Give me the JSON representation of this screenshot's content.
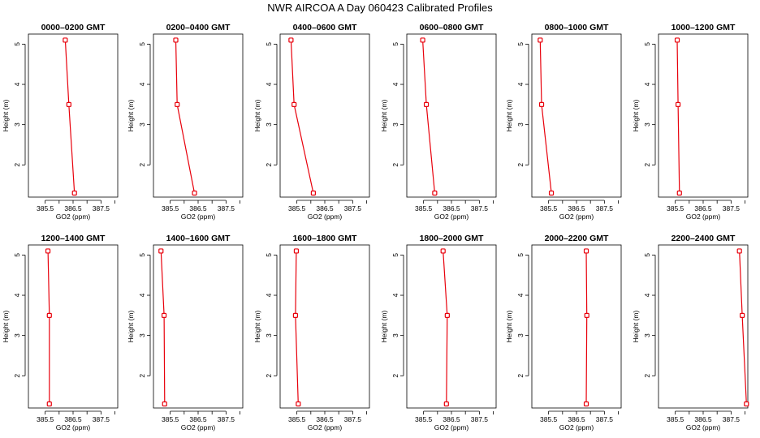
{
  "title": "NWR AIRCOA A  Day 060423  Calibrated Profiles",
  "colors": {
    "series": "#e8000b",
    "axis": "#000000"
  },
  "chart_data": [
    {
      "type": "line",
      "title": "0000–0200 GMT",
      "xlabel": "GO2 (ppm)",
      "ylabel": "Height (m)",
      "xlim": [
        384.9,
        388.1
      ],
      "ylim": [
        1.2,
        5.25
      ],
      "xticks": [
        385.5,
        386.5,
        387.5
      ],
      "xtick_labels": [
        "385.5",
        "386.5",
        "387.5"
      ],
      "yticks": [
        2,
        3,
        4,
        5
      ],
      "ytick_labels": [
        "2",
        "3",
        "4",
        "5"
      ],
      "points": [
        {
          "x": 386.22,
          "y": 5.1
        },
        {
          "x": 386.35,
          "y": 3.5
        },
        {
          "x": 386.55,
          "y": 1.3
        }
      ]
    },
    {
      "type": "line",
      "title": "0200–0400 GMT",
      "xlabel": "GO2 (ppm)",
      "ylabel": "Height (m)",
      "xlim": [
        384.9,
        388.1
      ],
      "ylim": [
        1.2,
        5.25
      ],
      "xticks": [
        385.5,
        386.5,
        387.5
      ],
      "xtick_labels": [
        "385.5",
        "386.5",
        "387.5"
      ],
      "yticks": [
        2,
        3,
        4,
        5
      ],
      "ytick_labels": [
        "2",
        "3",
        "4",
        "5"
      ],
      "points": [
        {
          "x": 385.7,
          "y": 5.1
        },
        {
          "x": 385.75,
          "y": 3.5
        },
        {
          "x": 386.37,
          "y": 1.3
        }
      ]
    },
    {
      "type": "line",
      "title": "0400–0600 GMT",
      "xlabel": "GO2 (ppm)",
      "ylabel": "Height (m)",
      "xlim": [
        384.9,
        388.1
      ],
      "ylim": [
        1.2,
        5.25
      ],
      "xticks": [
        385.5,
        386.5,
        387.5
      ],
      "xtick_labels": [
        "385.5",
        "386.5",
        "387.5"
      ],
      "yticks": [
        2,
        3,
        4,
        5
      ],
      "ytick_labels": [
        "2",
        "3",
        "4",
        "5"
      ],
      "points": [
        {
          "x": 385.29,
          "y": 5.1
        },
        {
          "x": 385.4,
          "y": 3.5
        },
        {
          "x": 386.09,
          "y": 1.3
        }
      ]
    },
    {
      "type": "line",
      "title": "0600–0800 GMT",
      "xlabel": "GO2 (ppm)",
      "ylabel": "Height (m)",
      "xlim": [
        384.9,
        388.1
      ],
      "ylim": [
        1.2,
        5.25
      ],
      "xticks": [
        385.5,
        386.5,
        387.5
      ],
      "xtick_labels": [
        "385.5",
        "386.5",
        "387.5"
      ],
      "yticks": [
        2,
        3,
        4,
        5
      ],
      "ytick_labels": [
        "2",
        "3",
        "4",
        "5"
      ],
      "points": [
        {
          "x": 385.47,
          "y": 5.1
        },
        {
          "x": 385.6,
          "y": 3.5
        },
        {
          "x": 385.9,
          "y": 1.3
        }
      ]
    },
    {
      "type": "line",
      "title": "0800–1000 GMT",
      "xlabel": "GO2 (ppm)",
      "ylabel": "Height (m)",
      "xlim": [
        384.9,
        388.1
      ],
      "ylim": [
        1.2,
        5.25
      ],
      "xticks": [
        385.5,
        386.5,
        387.5
      ],
      "xtick_labels": [
        "385.5",
        "386.5",
        "387.5"
      ],
      "yticks": [
        2,
        3,
        4,
        5
      ],
      "ytick_labels": [
        "2",
        "3",
        "4",
        "5"
      ],
      "points": [
        {
          "x": 385.2,
          "y": 5.1
        },
        {
          "x": 385.25,
          "y": 3.5
        },
        {
          "x": 385.6,
          "y": 1.3
        }
      ]
    },
    {
      "type": "line",
      "title": "1000–1200 GMT",
      "xlabel": "GO2 (ppm)",
      "ylabel": "Height (m)",
      "xlim": [
        384.9,
        388.1
      ],
      "ylim": [
        1.2,
        5.25
      ],
      "xticks": [
        385.5,
        386.5,
        387.5
      ],
      "xtick_labels": [
        "385.5",
        "386.5",
        "387.5"
      ],
      "yticks": [
        2,
        3,
        4,
        5
      ],
      "ytick_labels": [
        "2",
        "3",
        "4",
        "5"
      ],
      "points": [
        {
          "x": 385.57,
          "y": 5.1
        },
        {
          "x": 385.6,
          "y": 3.5
        },
        {
          "x": 385.65,
          "y": 1.3
        }
      ]
    },
    {
      "type": "line",
      "title": "1200–1400 GMT",
      "xlabel": "GO2 (ppm)",
      "ylabel": "Height (m)",
      "xlim": [
        384.9,
        388.1
      ],
      "ylim": [
        1.2,
        5.25
      ],
      "xticks": [
        385.5,
        386.5,
        387.5
      ],
      "xtick_labels": [
        "385.5",
        "386.5",
        "387.5"
      ],
      "yticks": [
        2,
        3,
        4,
        5
      ],
      "ytick_labels": [
        "2",
        "3",
        "4",
        "5"
      ],
      "points": [
        {
          "x": 385.6,
          "y": 5.1
        },
        {
          "x": 385.65,
          "y": 3.5
        },
        {
          "x": 385.65,
          "y": 1.3
        }
      ]
    },
    {
      "type": "line",
      "title": "1400–1600 GMT",
      "xlabel": "GO2 (ppm)",
      "ylabel": "Height (m)",
      "xlim": [
        384.9,
        388.1
      ],
      "ylim": [
        1.2,
        5.25
      ],
      "xticks": [
        385.5,
        386.5,
        387.5
      ],
      "xtick_labels": [
        "385.5",
        "386.5",
        "387.5"
      ],
      "yticks": [
        2,
        3,
        4,
        5
      ],
      "ytick_labels": [
        "2",
        "3",
        "4",
        "5"
      ],
      "points": [
        {
          "x": 385.17,
          "y": 5.1
        },
        {
          "x": 385.28,
          "y": 3.5
        },
        {
          "x": 385.3,
          "y": 1.3
        }
      ]
    },
    {
      "type": "line",
      "title": "1600–1800 GMT",
      "xlabel": "GO2 (ppm)",
      "ylabel": "Height (m)",
      "xlim": [
        384.9,
        388.1
      ],
      "ylim": [
        1.2,
        5.25
      ],
      "xticks": [
        385.5,
        386.5,
        387.5
      ],
      "xtick_labels": [
        "385.5",
        "386.5",
        "387.5"
      ],
      "yticks": [
        2,
        3,
        4,
        5
      ],
      "ytick_labels": [
        "2",
        "3",
        "4",
        "5"
      ],
      "points": [
        {
          "x": 385.48,
          "y": 5.1
        },
        {
          "x": 385.45,
          "y": 3.5
        },
        {
          "x": 385.55,
          "y": 1.3
        }
      ]
    },
    {
      "type": "line",
      "title": "1800–2000 GMT",
      "xlabel": "GO2 (ppm)",
      "ylabel": "Height (m)",
      "xlim": [
        384.9,
        388.1
      ],
      "ylim": [
        1.2,
        5.25
      ],
      "xticks": [
        385.5,
        386.5,
        387.5
      ],
      "xtick_labels": [
        "385.5",
        "386.5",
        "387.5"
      ],
      "yticks": [
        2,
        3,
        4,
        5
      ],
      "ytick_labels": [
        "2",
        "3",
        "4",
        "5"
      ],
      "points": [
        {
          "x": 386.2,
          "y": 5.1
        },
        {
          "x": 386.35,
          "y": 3.5
        },
        {
          "x": 386.32,
          "y": 1.3
        }
      ]
    },
    {
      "type": "line",
      "title": "2000–2200 GMT",
      "xlabel": "GO2 (ppm)",
      "ylabel": "Height (m)",
      "xlim": [
        384.9,
        388.1
      ],
      "ylim": [
        1.2,
        5.25
      ],
      "xticks": [
        385.5,
        386.5,
        387.5
      ],
      "xtick_labels": [
        "385.5",
        "386.5",
        "387.5"
      ],
      "yticks": [
        2,
        3,
        4,
        5
      ],
      "ytick_labels": [
        "2",
        "3",
        "4",
        "5"
      ],
      "points": [
        {
          "x": 386.85,
          "y": 5.1
        },
        {
          "x": 386.87,
          "y": 3.5
        },
        {
          "x": 386.85,
          "y": 1.3
        }
      ]
    },
    {
      "type": "line",
      "title": "2200–2400 GMT",
      "xlabel": "GO2 (ppm)",
      "ylabel": "Height (m)",
      "xlim": [
        384.9,
        388.1
      ],
      "ylim": [
        1.2,
        5.25
      ],
      "xticks": [
        385.5,
        386.5,
        387.5
      ],
      "xtick_labels": [
        "385.5",
        "386.5",
        "387.5"
      ],
      "yticks": [
        2,
        3,
        4,
        5
      ],
      "ytick_labels": [
        "2",
        "3",
        "4",
        "5"
      ],
      "points": [
        {
          "x": 387.8,
          "y": 5.1
        },
        {
          "x": 387.9,
          "y": 3.5
        },
        {
          "x": 388.05,
          "y": 1.3
        }
      ]
    }
  ]
}
